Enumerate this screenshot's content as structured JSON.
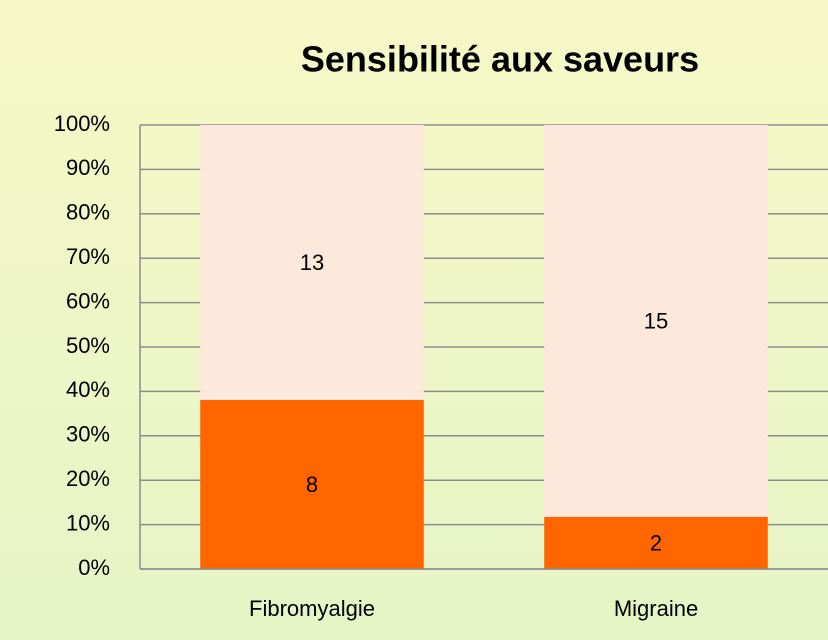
{
  "chart_data": {
    "type": "bar",
    "stacking": "percent",
    "title": "Sensibilité aux saveurs",
    "categories": [
      "Fibromyalgie",
      "Migraine"
    ],
    "series": [
      {
        "color": "#ff6600",
        "values": [
          8,
          2
        ]
      },
      {
        "color": "#fde9dc",
        "values": [
          13,
          15
        ]
      }
    ],
    "ylim": [
      0,
      100
    ],
    "yticks": [
      {
        "value": 0,
        "label": "0%"
      },
      {
        "value": 10,
        "label": "10%"
      },
      {
        "value": 20,
        "label": "20%"
      },
      {
        "value": 30,
        "label": "30%"
      },
      {
        "value": 40,
        "label": "40%"
      },
      {
        "value": 50,
        "label": "50%"
      },
      {
        "value": 60,
        "label": "60%"
      },
      {
        "value": 70,
        "label": "70%"
      },
      {
        "value": 80,
        "label": "80%"
      },
      {
        "value": 90,
        "label": "90%"
      },
      {
        "value": 100,
        "label": "100%"
      }
    ],
    "grid": true
  }
}
